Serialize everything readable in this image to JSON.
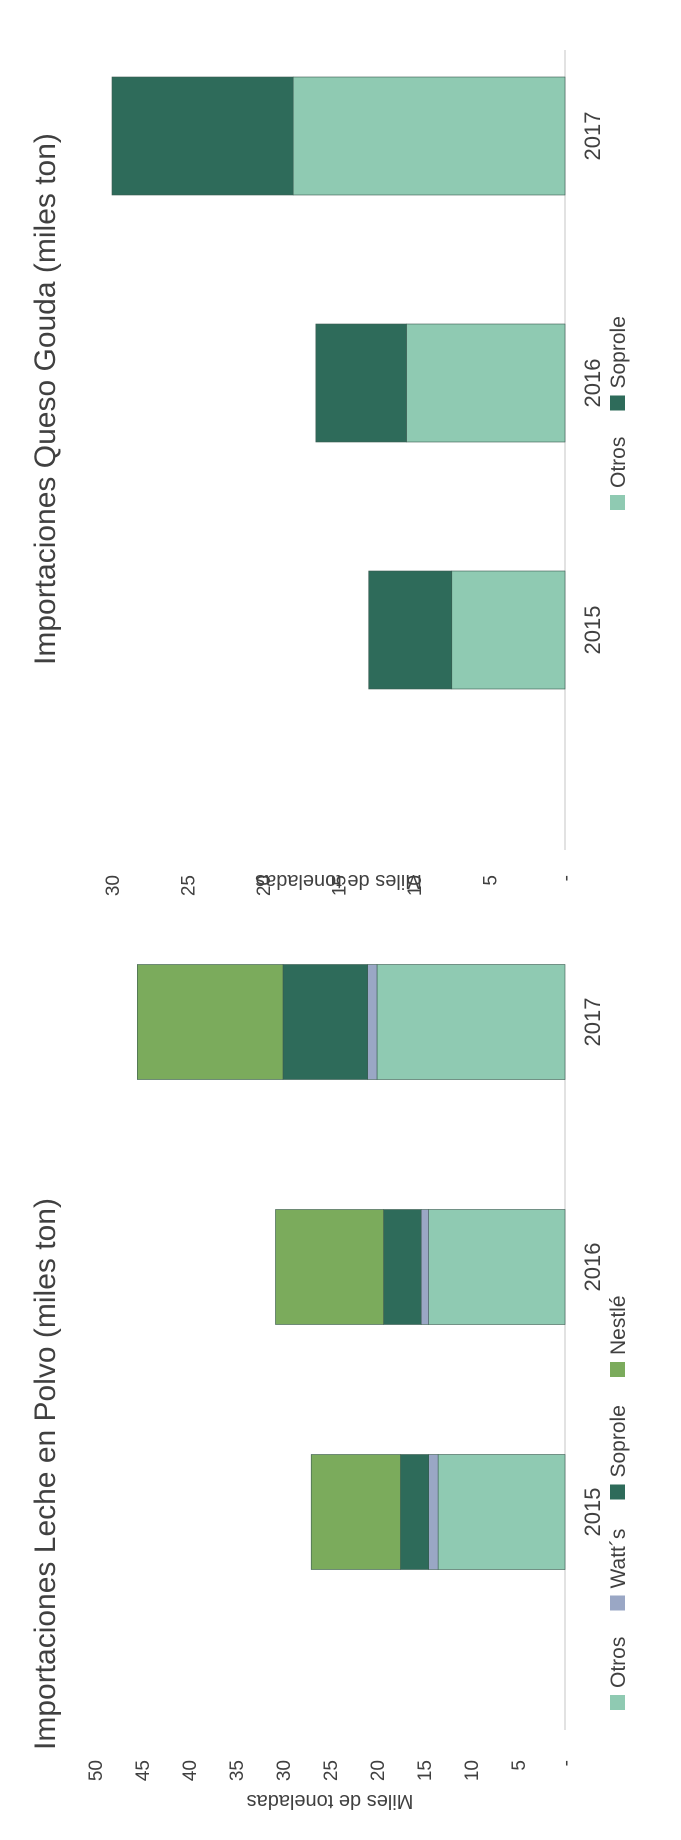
{
  "chart_data": [
    {
      "type": "bar",
      "stacked": true,
      "orientation": "vertical",
      "title": "Importaciones Leche en Polvo (miles ton)",
      "ylabel": "Miles de toneladas",
      "ylim": [
        0,
        50
      ],
      "y_ticks": [
        "-",
        "5",
        "10",
        "15",
        "20",
        "25",
        "30",
        "35",
        "40",
        "45",
        "50"
      ],
      "y_tick_values": [
        0,
        5,
        10,
        15,
        20,
        25,
        30,
        35,
        40,
        45,
        50
      ],
      "categories": [
        "2015",
        "2016",
        "2017"
      ],
      "legend": "bottom",
      "series": [
        {
          "name": "Otros",
          "color": "#8fcab2",
          "values": [
            13.5,
            14.5,
            20.0
          ]
        },
        {
          "name": "Watt´s",
          "color": "#9aa7c5",
          "values": [
            1.0,
            0.8,
            1.0
          ]
        },
        {
          "name": "Soprole",
          "color": "#2e6b5a",
          "values": [
            3.0,
            4.0,
            9.0
          ]
        },
        {
          "name": "Nestlé",
          "color": "#7bab5c",
          "values": [
            9.5,
            11.5,
            15.5
          ]
        }
      ]
    },
    {
      "type": "bar",
      "stacked": true,
      "orientation": "vertical",
      "title": "Importaciones Queso Gouda (miles ton)",
      "ylabel": "Miles de toneladas",
      "ylim": [
        0,
        30
      ],
      "y_ticks": [
        "-",
        "5",
        "10",
        "15",
        "20",
        "25",
        "30"
      ],
      "y_tick_values": [
        0,
        5,
        10,
        15,
        20,
        25,
        30
      ],
      "categories": [
        "2015",
        "2016",
        "2017"
      ],
      "legend": "bottom",
      "series": [
        {
          "name": "Otros",
          "color": "#8fcab2",
          "values": [
            7.5,
            10.5,
            18.0
          ]
        },
        {
          "name": "Soprole",
          "color": "#2e6b5a",
          "values": [
            5.5,
            6.0,
            12.0
          ]
        }
      ]
    }
  ]
}
